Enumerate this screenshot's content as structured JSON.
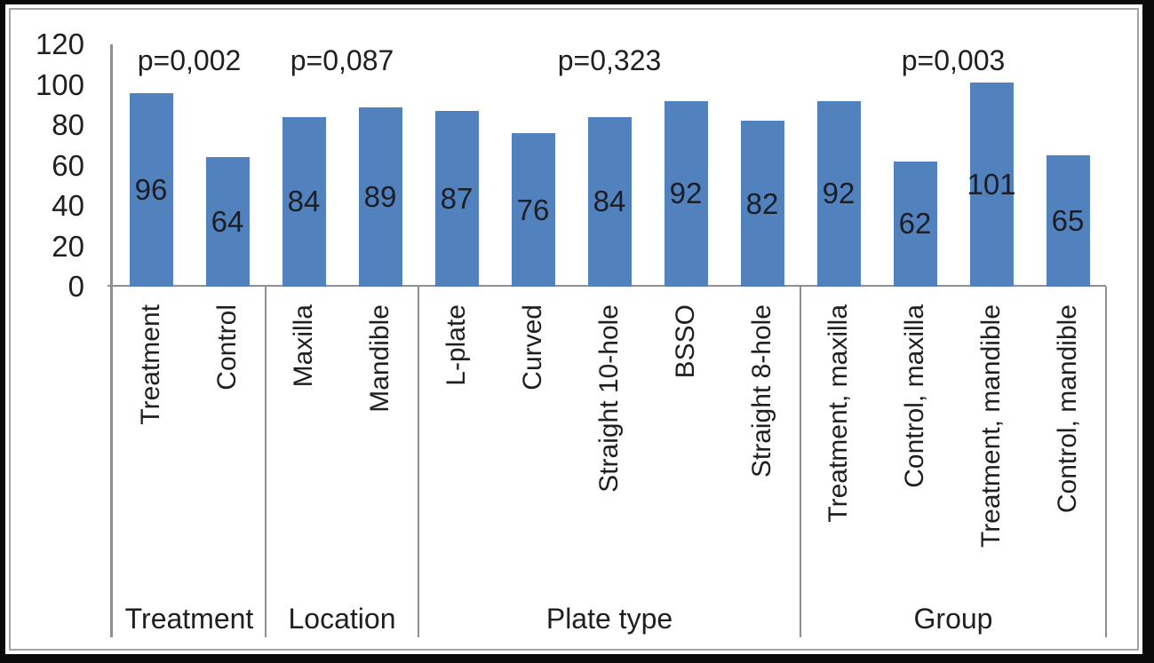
{
  "chart_data": {
    "type": "bar",
    "title": "",
    "xlabel": "",
    "ylabel": "",
    "ylim": [
      0,
      120
    ],
    "yticks": [
      0,
      20,
      40,
      60,
      80,
      100,
      120
    ],
    "grid": false,
    "legend": false,
    "bar_color": "#5182bd",
    "line_color": "#8f8f8f",
    "text_color": "#1f1f1f",
    "groups": [
      {
        "label": "Treatment",
        "p_value": "p=0,002",
        "categories": [
          "Treatment",
          "Control"
        ],
        "values": [
          96,
          64
        ]
      },
      {
        "label": "Location",
        "p_value": "p=0,087",
        "categories": [
          "Maxilla",
          "Mandible"
        ],
        "values": [
          84,
          89
        ]
      },
      {
        "label": "Plate type",
        "p_value": "p=0,323",
        "categories": [
          "L-plate",
          "Curved",
          "Straight 10-hole",
          "BSSO",
          "Straight 8-hole"
        ],
        "values": [
          87,
          76,
          84,
          92,
          82
        ]
      },
      {
        "label": "Group",
        "p_value": "p=0,003",
        "categories": [
          "Treatment, maxilla",
          "Control, maxilla",
          "Treatment, mandible",
          "Control, mandible"
        ],
        "values": [
          92,
          62,
          101,
          65
        ]
      }
    ]
  }
}
